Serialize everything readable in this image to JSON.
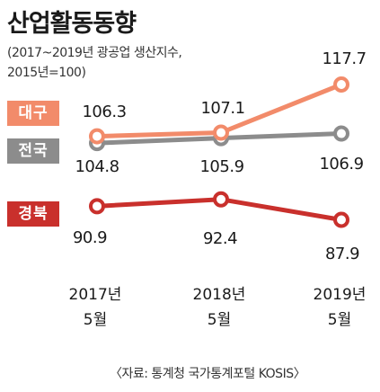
{
  "header": {
    "title": "산업활동동향",
    "subtitle_line1": "(2017~2019년 광공업 생산지수,",
    "subtitle_line2": "2015년=100)"
  },
  "footer": {
    "source": "〈자료: 통계청 국가통계포털 KOSIS〉"
  },
  "colors": {
    "daegu": "#f28b6a",
    "national": "#8c8c8c",
    "gyeongbuk": "#c9302c"
  },
  "chart_data": {
    "type": "line",
    "title": "산업활동동향",
    "subtitle": "(2017~2019년 광공업 생산지수, 2015년=100)",
    "categories": [
      "2017년 5월",
      "2018년 5월",
      "2019년 5월"
    ],
    "category_lines": [
      [
        "2017년",
        "5월"
      ],
      [
        "2018년",
        "5월"
      ],
      [
        "2019년",
        "5월"
      ]
    ],
    "series": [
      {
        "name": "대구",
        "values": [
          106.3,
          107.1,
          117.7
        ],
        "labels": [
          "106.3",
          "107.1",
          "117.7"
        ]
      },
      {
        "name": "전국",
        "values": [
          104.8,
          105.9,
          106.9
        ],
        "labels": [
          "104.8",
          "105.9",
          "106.9"
        ]
      },
      {
        "name": "경북",
        "values": [
          90.9,
          92.4,
          87.9
        ],
        "labels": [
          "90.9",
          "92.4",
          "87.9"
        ]
      }
    ],
    "grid": false,
    "legend": "left, inline tags"
  }
}
